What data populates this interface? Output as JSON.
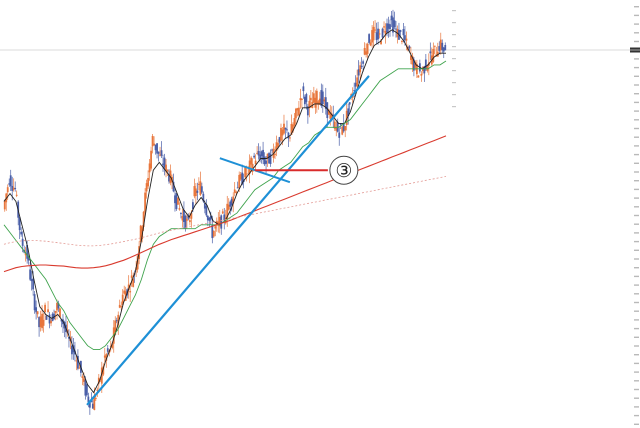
{
  "chart_data": {
    "type": "candlestick",
    "title": "",
    "xlabel": "",
    "ylabel": "",
    "grid": false,
    "legend": "none",
    "price_axis": "right",
    "ylim": [
      0,
      100
    ],
    "colors": {
      "up": "#e8763c",
      "down": "#4a5fa8",
      "ma_short": "#222222",
      "ma_medium": "#3fa34d",
      "ma_long": "#d93a2e",
      "ma_long_dashed": "#e39a94",
      "ma_medium_dotted": "#9fd0a3",
      "trendline": "#1e90d6",
      "annotation_line": "#d92b2b",
      "current_price_line": "#cfcfcf"
    },
    "series": [
      {
        "kind": "price",
        "values": [
          52,
          60,
          57,
          44,
          40,
          30,
          22,
          26,
          24,
          27,
          23,
          18,
          15,
          10,
          4,
          2,
          7,
          14,
          16,
          24,
          30,
          32,
          36,
          46,
          58,
          70,
          66,
          63,
          60,
          54,
          50,
          48,
          56,
          58,
          52,
          46,
          48,
          50,
          54,
          58,
          60,
          62,
          65,
          66,
          64,
          66,
          70,
          72,
          71,
          76,
          82,
          78,
          80,
          81,
          78,
          75,
          72,
          73,
          79,
          85,
          90,
          95,
          97,
          96,
          99,
          100,
          97,
          96,
          92,
          88,
          87,
          90,
          92,
          94,
          93
        ]
      },
      {
        "kind": "ma_short",
        "values": [
          54,
          56,
          54,
          48,
          42,
          34,
          27,
          25,
          24,
          25,
          23,
          19,
          15,
          11,
          7,
          5,
          8,
          13,
          17,
          22,
          28,
          32,
          36,
          44,
          54,
          62,
          64,
          62,
          60,
          56,
          52,
          50,
          53,
          55,
          53,
          49,
          48,
          49,
          52,
          56,
          59,
          61,
          63,
          65,
          65,
          66,
          68,
          70,
          71,
          74,
          78,
          78,
          79,
          79,
          78,
          76,
          74,
          74,
          77,
          82,
          87,
          91,
          94,
          95,
          97,
          98,
          97,
          95,
          92,
          89,
          88,
          89,
          91,
          92,
          92
        ]
      },
      {
        "kind": "ma_medium",
        "values": [
          48,
          46,
          44,
          42,
          40,
          38,
          36,
          34,
          31,
          28,
          26,
          23,
          21,
          19,
          17,
          16,
          16,
          17,
          19,
          21,
          24,
          27,
          30,
          34,
          39,
          43,
          45,
          46,
          47,
          47,
          47,
          47,
          47,
          48,
          48,
          48,
          48,
          49,
          50,
          51,
          53,
          55,
          57,
          58,
          59,
          60,
          62,
          63,
          64,
          66,
          68,
          69,
          71,
          72,
          73,
          73,
          73,
          74,
          75,
          77,
          79,
          81,
          83,
          85,
          86,
          87,
          88,
          88,
          88,
          88,
          88,
          88,
          89,
          89,
          90
        ]
      },
      {
        "kind": "ma_long",
        "values": [
          36,
          36.5,
          37,
          37.3,
          37.5,
          37.6,
          37.7,
          37.7,
          37.6,
          37.5,
          37.4,
          37.2,
          37,
          36.9,
          36.9,
          37,
          37.2,
          37.5,
          37.9,
          38.4,
          38.9,
          39.5,
          40.2,
          40.9,
          41.6,
          42.3,
          43,
          43.6,
          44.2,
          44.7,
          45.2,
          45.7,
          46.2,
          46.7,
          47.2,
          47.7,
          48.2,
          48.7,
          49.2,
          49.8,
          50.4,
          51,
          51.6,
          52.2,
          52.8,
          53.4,
          54,
          54.6,
          55.2,
          55.8,
          56.4,
          57,
          57.6,
          58.2,
          58.8,
          59.4,
          60,
          60.6,
          61.2,
          61.8,
          62.4,
          63,
          63.6,
          64.2,
          64.8,
          65.4,
          66,
          66.6,
          67.2,
          67.8,
          68.4,
          69,
          69.6,
          70.2,
          70.8
        ]
      },
      {
        "kind": "ma_long_dashed",
        "values": [
          43,
          43.4,
          43.7,
          43.9,
          44,
          44,
          43.9,
          43.8,
          43.6,
          43.4,
          43.2,
          43,
          42.8,
          42.7,
          42.6,
          42.6,
          42.7,
          42.9,
          43.1,
          43.4,
          43.7,
          44,
          44.3,
          44.7,
          45.1,
          45.5,
          45.9,
          46.3,
          46.6,
          46.9,
          47.2,
          47.5,
          47.8,
          48.1,
          48.4,
          48.7,
          49,
          49.3,
          49.6,
          49.9,
          50.2,
          50.5,
          50.8,
          51.1,
          51.4,
          51.7,
          52,
          52.3,
          52.6,
          52.9,
          53.2,
          53.5,
          53.8,
          54.1,
          54.4,
          54.7,
          55,
          55.3,
          55.6,
          55.9,
          56.2,
          56.5,
          56.8,
          57.1,
          57.4,
          57.7,
          58,
          58.3,
          58.6,
          58.9,
          59.2,
          59.5,
          59.8,
          60.1,
          60.4
        ]
      }
    ],
    "annotations": [
      {
        "type": "trendline",
        "from": [
          14,
          2
        ],
        "to": [
          61,
          86
        ]
      },
      {
        "type": "marker",
        "label": "③",
        "x": 42,
        "y": 62
      }
    ]
  }
}
